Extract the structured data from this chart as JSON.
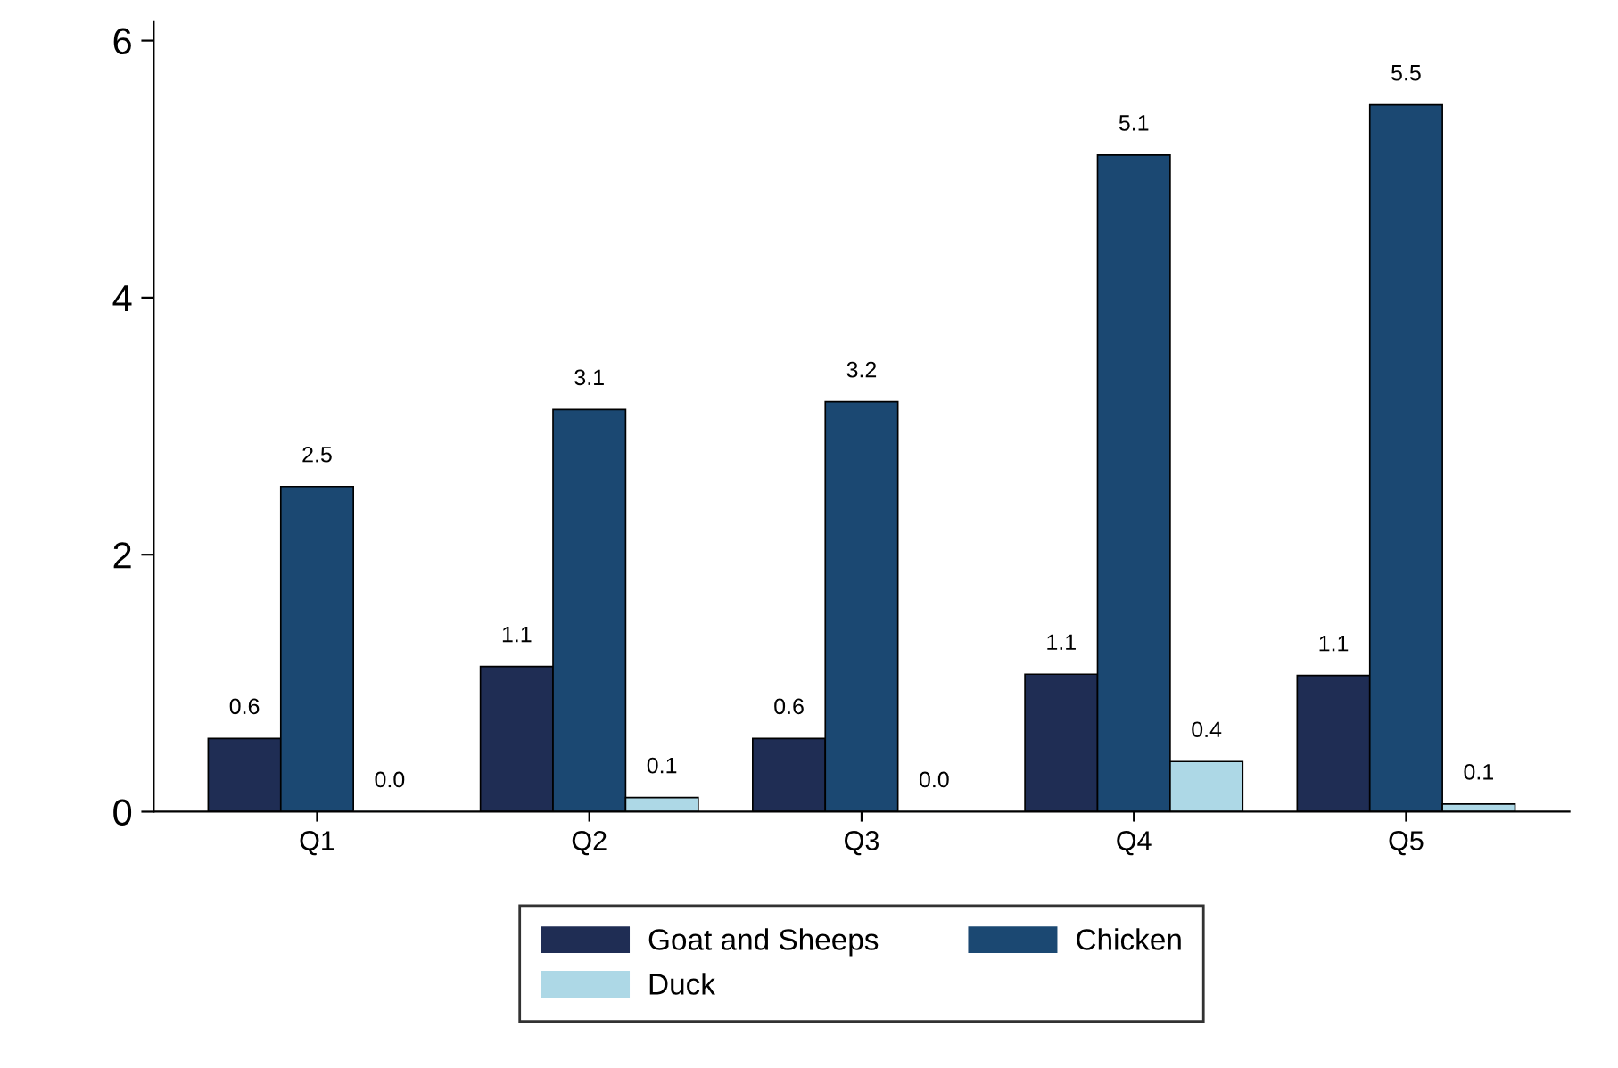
{
  "chart_data": {
    "type": "bar",
    "categories": [
      "Q1",
      "Q2",
      "Q3",
      "Q4",
      "Q5"
    ],
    "series": [
      {
        "name": "Goat and Sheeps",
        "color": "#1f2d54",
        "values": [
          0.57,
          1.13,
          0.57,
          1.07,
          1.06
        ],
        "value_labels": [
          "0.6",
          "1.1",
          "0.6",
          "1.1",
          "1.1"
        ]
      },
      {
        "name": "Chicken",
        "color": "#1b4872",
        "values": [
          2.53,
          3.13,
          3.19,
          5.11,
          5.5
        ],
        "value_labels": [
          "2.5",
          "3.1",
          "3.2",
          "5.1",
          "5.5"
        ]
      },
      {
        "name": "Duck",
        "color": "#add8e6",
        "values": [
          0,
          0.11,
          0,
          0.39,
          0.06
        ],
        "value_labels": [
          "0.0",
          "0.1",
          "0.0",
          "0.4",
          "0.1"
        ]
      }
    ],
    "ylim": [
      0,
      6.15
    ],
    "yticks": [
      0,
      2,
      4,
      6
    ],
    "grid": false,
    "legend": "bottom"
  }
}
